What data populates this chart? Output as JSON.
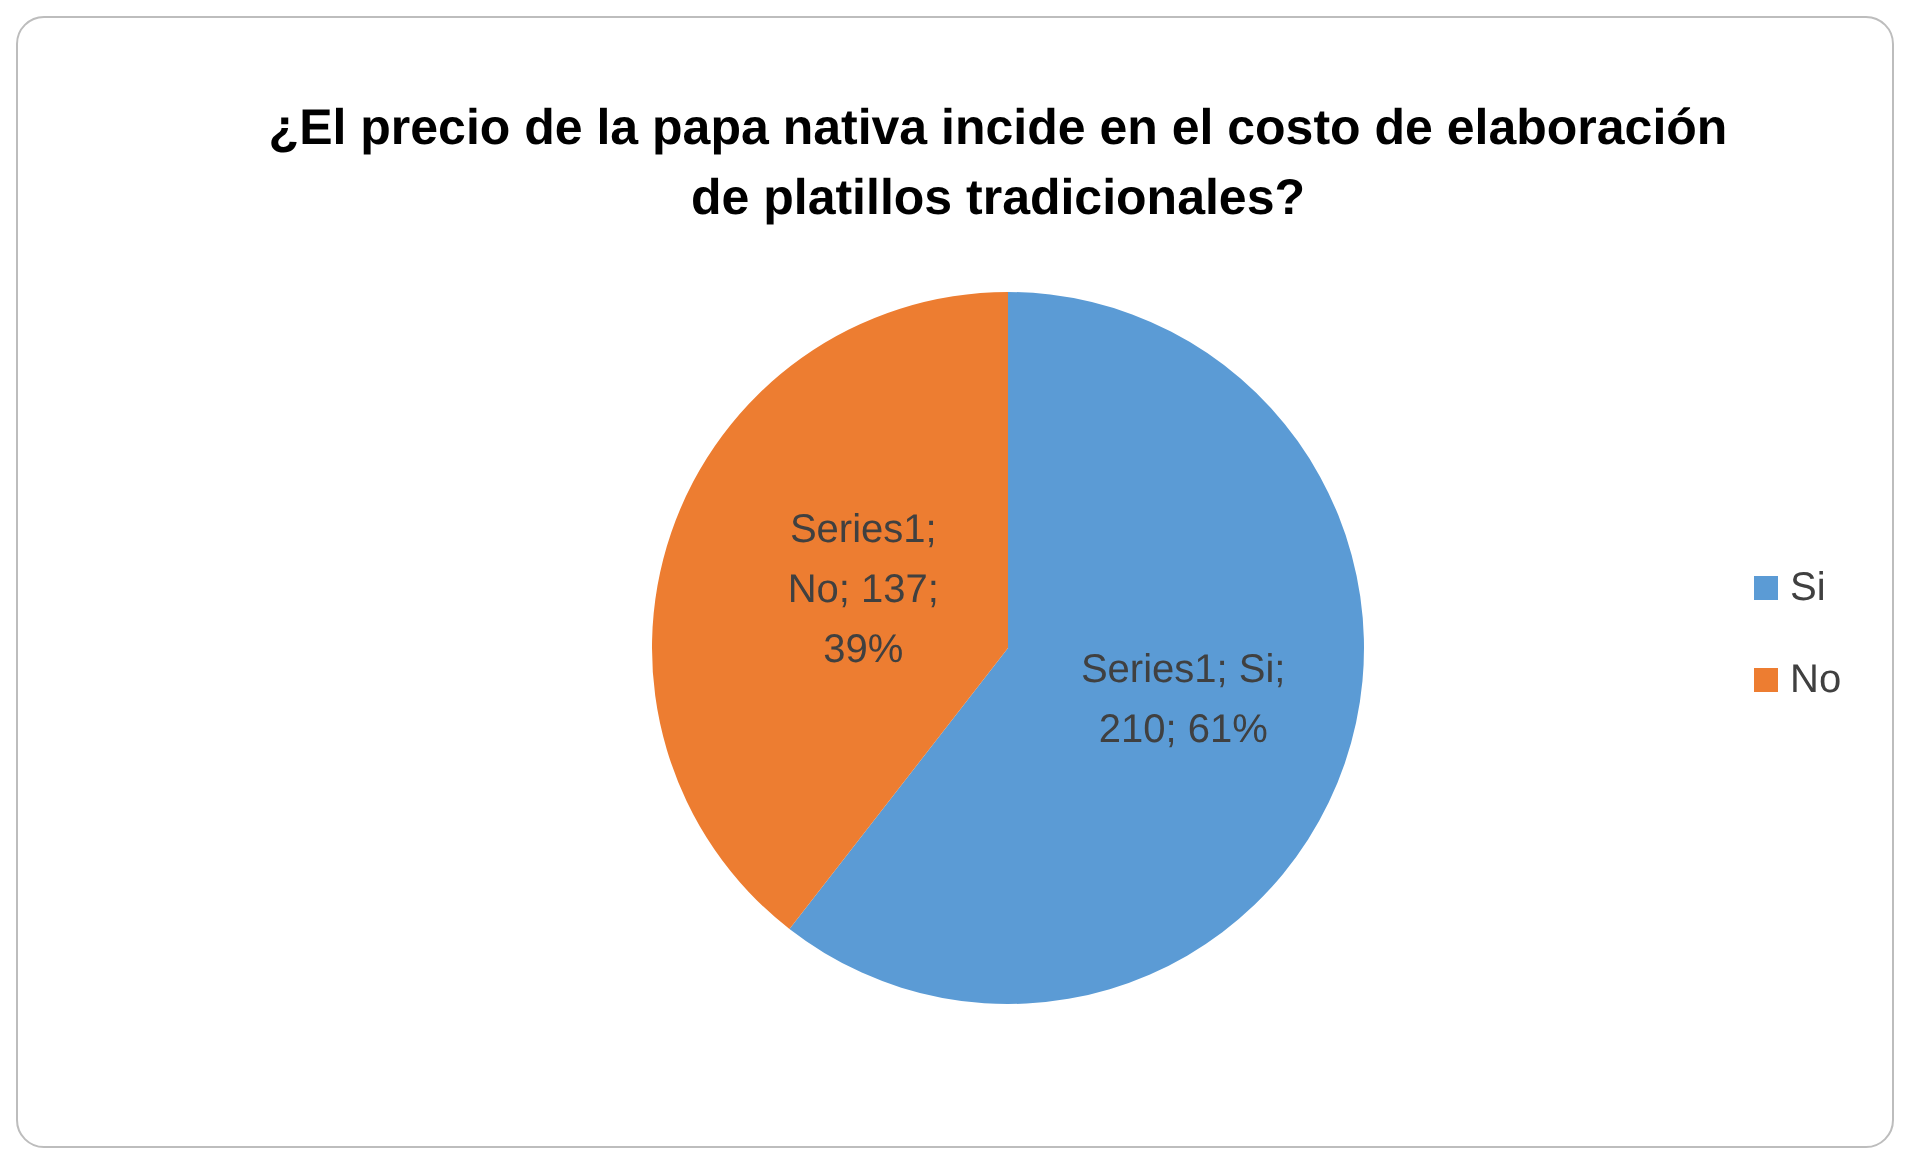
{
  "chart_data": {
    "type": "pie",
    "title": "¿El precio de la papa nativa incide en el costo de elaboración de platillos tradicionales?",
    "categories": [
      "Si",
      "No"
    ],
    "values": [
      210,
      137
    ],
    "colors": [
      "#5b9bd5",
      "#ed7d31"
    ],
    "value_labels": [
      "Series1; Si; 210; 61%",
      "Series1; No; 137; 39%"
    ],
    "legend": "right"
  }
}
